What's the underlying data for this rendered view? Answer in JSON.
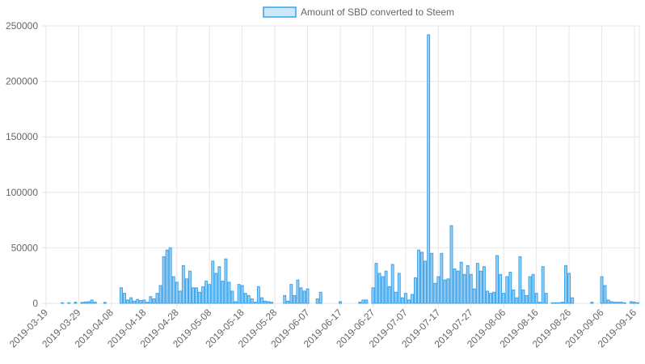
{
  "chart_data": {
    "type": "bar",
    "legend": "top",
    "grid": true,
    "categories": [
      "2019-03-19",
      null,
      null,
      null,
      null,
      null,
      null,
      null,
      null,
      null,
      "2019-03-29",
      null,
      null,
      null,
      null,
      null,
      null,
      null,
      null,
      null,
      "2019-04-08",
      null,
      null,
      null,
      null,
      null,
      null,
      null,
      null,
      null,
      "2019-04-18",
      null,
      null,
      null,
      null,
      null,
      null,
      null,
      null,
      null,
      "2019-04-28",
      null,
      null,
      null,
      null,
      null,
      null,
      null,
      null,
      null,
      "2019-05-08",
      null,
      null,
      null,
      null,
      null,
      null,
      null,
      null,
      null,
      "2019-05-18",
      null,
      null,
      null,
      null,
      null,
      null,
      null,
      null,
      null,
      "2019-05-28",
      null,
      null,
      null,
      null,
      null,
      null,
      null,
      null,
      null,
      "2019-06-07",
      null,
      null,
      null,
      null,
      null,
      null,
      null,
      null,
      null,
      "2019-06-17",
      null,
      null,
      null,
      null,
      null,
      null,
      null,
      null,
      null,
      "2019-06-27",
      null,
      null,
      null,
      null,
      null,
      null,
      null,
      null,
      null,
      "2019-07-07",
      null,
      null,
      null,
      null,
      null,
      null,
      null,
      null,
      null,
      "2019-07-17",
      null,
      null,
      null,
      null,
      null,
      null,
      null,
      null,
      null,
      "2019-07-27",
      null,
      null,
      null,
      null,
      null,
      null,
      null,
      null,
      null,
      "2019-08-06",
      null,
      null,
      null,
      null,
      null,
      null,
      null,
      null,
      null,
      "2019-08-16",
      null,
      null,
      null,
      null,
      null,
      null,
      null,
      null,
      null,
      "2019-08-26",
      null,
      null,
      null,
      null,
      null,
      null,
      null,
      null,
      null,
      "2019-09-06",
      null,
      null,
      null,
      null,
      null,
      null,
      null,
      null,
      null,
      "2019-09-16",
      null
    ],
    "series": [
      {
        "name": "Amount of SBD converted to Steem",
        "color": "#36a2eb",
        "fill": "#9ad0f5",
        "values": [
          0,
          0,
          0,
          0,
          0,
          500,
          0,
          500,
          0,
          1000,
          0,
          800,
          1200,
          1500,
          3000,
          1000,
          0,
          0,
          800,
          0,
          0,
          0,
          0,
          14000,
          9000,
          3000,
          5000,
          2000,
          3500,
          2500,
          3000,
          1000,
          6000,
          4000,
          9000,
          16000,
          42000,
          48000,
          50000,
          24000,
          19000,
          11000,
          34000,
          22000,
          29000,
          14000,
          14000,
          10000,
          15000,
          20000,
          17000,
          38000,
          27000,
          33000,
          20000,
          40000,
          19000,
          11000,
          1500,
          17000,
          16000,
          9000,
          7000,
          4000,
          1000,
          15000,
          5000,
          2000,
          1500,
          1000,
          0,
          0,
          0,
          7000,
          2000,
          17000,
          7000,
          21000,
          14000,
          11000,
          13000,
          0,
          0,
          4000,
          10000,
          0,
          0,
          0,
          0,
          0,
          1500,
          0,
          0,
          0,
          0,
          0,
          1000,
          3000,
          3000,
          0,
          14000,
          36000,
          27000,
          24000,
          29000,
          15000,
          35000,
          10000,
          27000,
          5000,
          9000,
          3000,
          8000,
          23000,
          48000,
          46000,
          38000,
          242000,
          45000,
          18000,
          24000,
          45000,
          21000,
          22000,
          70000,
          31000,
          29000,
          37000,
          26000,
          34000,
          26000,
          13000,
          36000,
          29000,
          33000,
          11000,
          9000,
          10000,
          43000,
          26000,
          9000,
          24000,
          28000,
          12000,
          5000,
          42000,
          12000,
          7000,
          24000,
          26000,
          9000,
          1000,
          33000,
          9000,
          0,
          500,
          500,
          500,
          1000,
          34000,
          27000,
          5000,
          0,
          0,
          0,
          0,
          0,
          1000,
          0,
          0,
          24000,
          16000,
          3000,
          1500,
          1000,
          1000,
          1000,
          500,
          0,
          1500,
          1000,
          500
        ]
      }
    ],
    "ylim": [
      0,
      250000
    ],
    "yticks": [
      0,
      50000,
      100000,
      150000,
      200000,
      250000
    ]
  }
}
